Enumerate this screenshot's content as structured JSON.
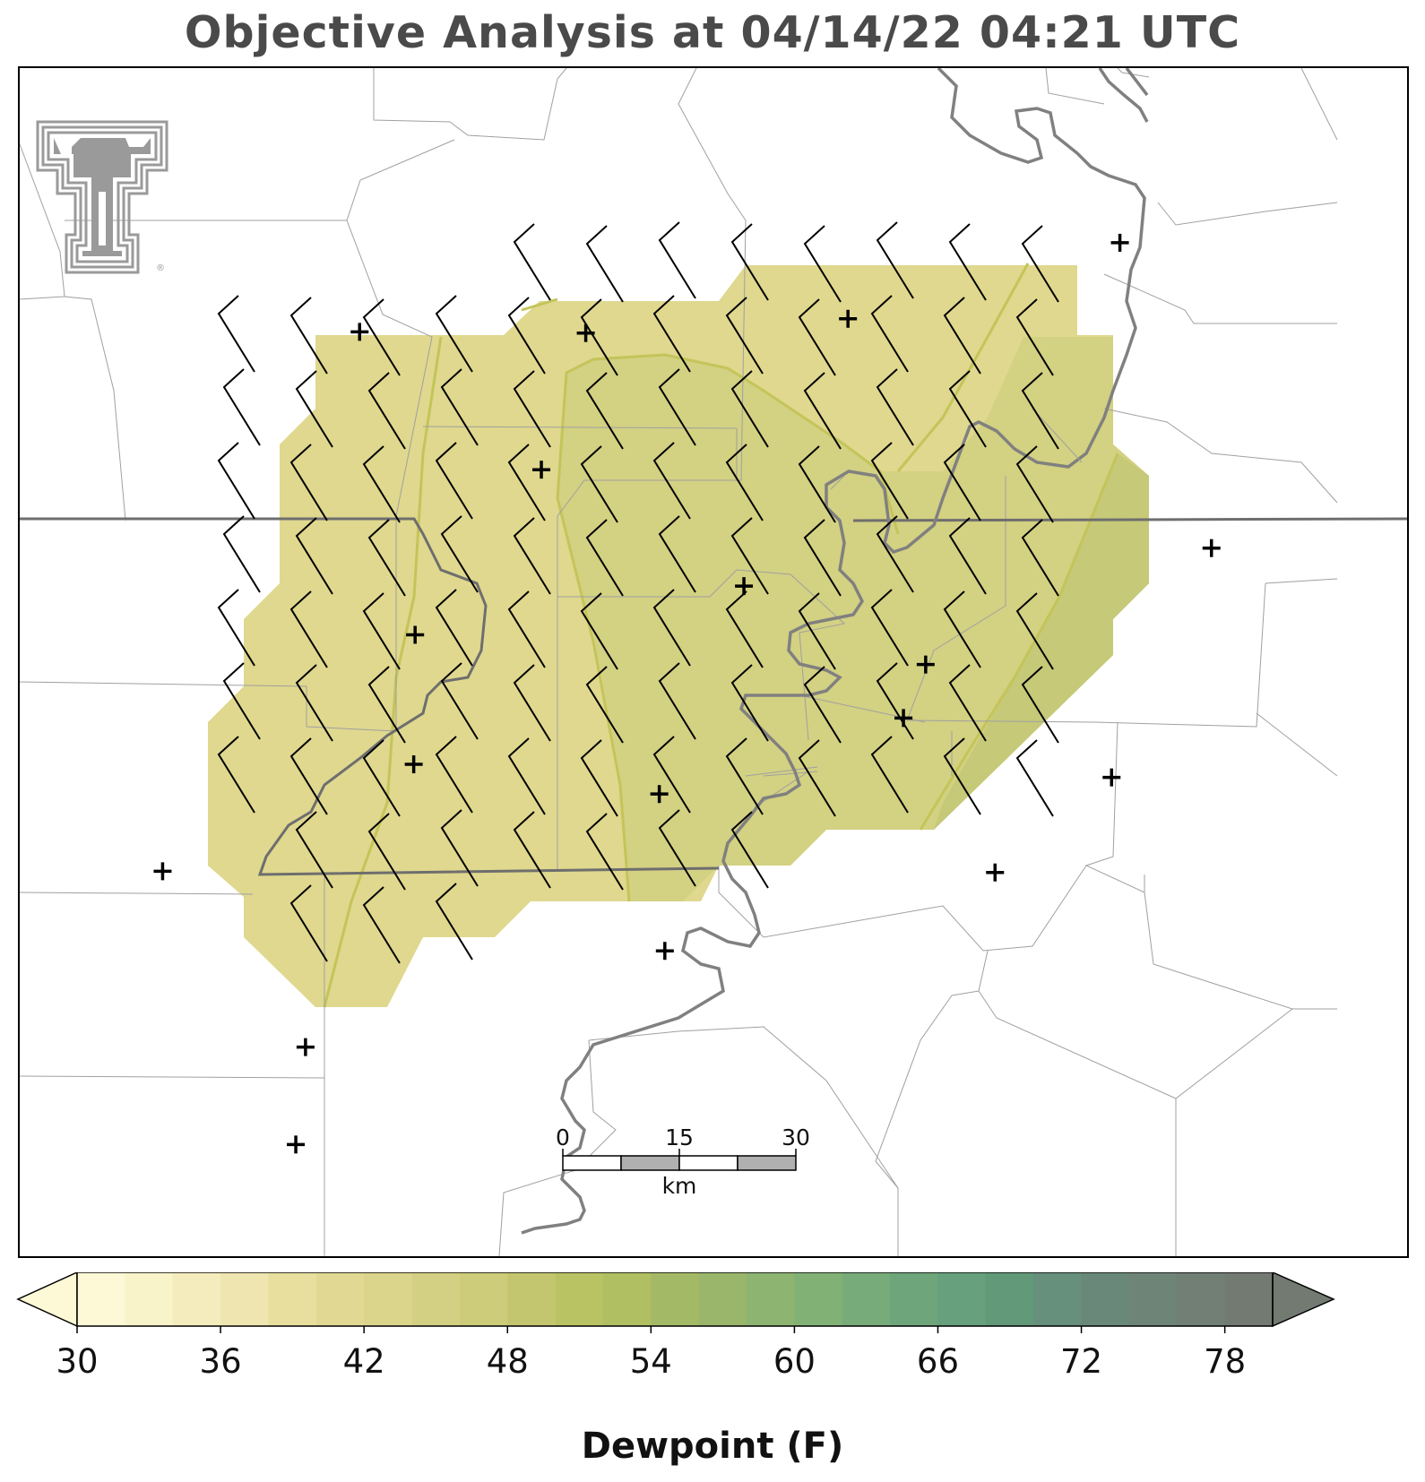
{
  "title": "Objective Analysis at 04/14/22 04:21 UTC",
  "colors": {
    "water": "#808080",
    "state_border": "#6e6e6e",
    "county": "#a0a0a0",
    "contour": "#c4c45a",
    "logo": "#9a9a9a",
    "fill_low": "#dfd88e",
    "fill_mid": "#d3d182",
    "fill_high": "#c5c978"
  },
  "logo": {
    "name": "texas-tech-double-t",
    "registered_mark": "®"
  },
  "scale_bar": {
    "labels": [
      "0",
      "15",
      "30"
    ],
    "unit": "km"
  },
  "colorbar": {
    "title": "Dewpoint (F)",
    "min": 30,
    "max": 80,
    "step": 2,
    "tick_labels": [
      "30",
      "36",
      "42",
      "48",
      "54",
      "60",
      "66",
      "72",
      "78"
    ],
    "colors": [
      "#fdf9d6",
      "#f9f3c9",
      "#f4ecbd",
      "#efe5b0",
      "#e8df9f",
      "#e1d993",
      "#dbd48b",
      "#d4d083",
      "#cccc7b",
      "#c4c66f",
      "#bac363",
      "#afbf61",
      "#a4b965",
      "#99b66b",
      "#8db471",
      "#82b176",
      "#77ab79",
      "#6ea57b",
      "#66a07c",
      "#629979",
      "#668f7c",
      "#6a8879",
      "#6e8477",
      "#717f75",
      "#727a72"
    ]
  },
  "stations": [
    {
      "lon": 0.245,
      "lat": 0.778
    },
    {
      "lon": 0.597,
      "lat": 0.789
    },
    {
      "lon": 0.793,
      "lat": 0.853
    },
    {
      "lon": 0.408,
      "lat": 0.777
    },
    {
      "lon": 0.376,
      "lat": 0.662
    },
    {
      "lon": 0.787,
      "lat": 0.403
    },
    {
      "lon": 0.653,
      "lat": 0.498
    },
    {
      "lon": 0.859,
      "lat": 0.596
    },
    {
      "lon": 0.285,
      "lat": 0.523
    },
    {
      "lon": 0.522,
      "lat": 0.564
    },
    {
      "lon": 0.461,
      "lat": 0.389
    },
    {
      "lon": 0.284,
      "lat": 0.414
    },
    {
      "lon": 0.703,
      "lat": 0.323
    },
    {
      "lon": 0.103,
      "lat": 0.324
    },
    {
      "lon": 0.465,
      "lat": 0.257
    },
    {
      "lon": 0.206,
      "lat": 0.176
    },
    {
      "lon": 0.637,
      "lat": 0.453
    },
    {
      "lon": 0.199,
      "lat": 0.094
    }
  ]
}
